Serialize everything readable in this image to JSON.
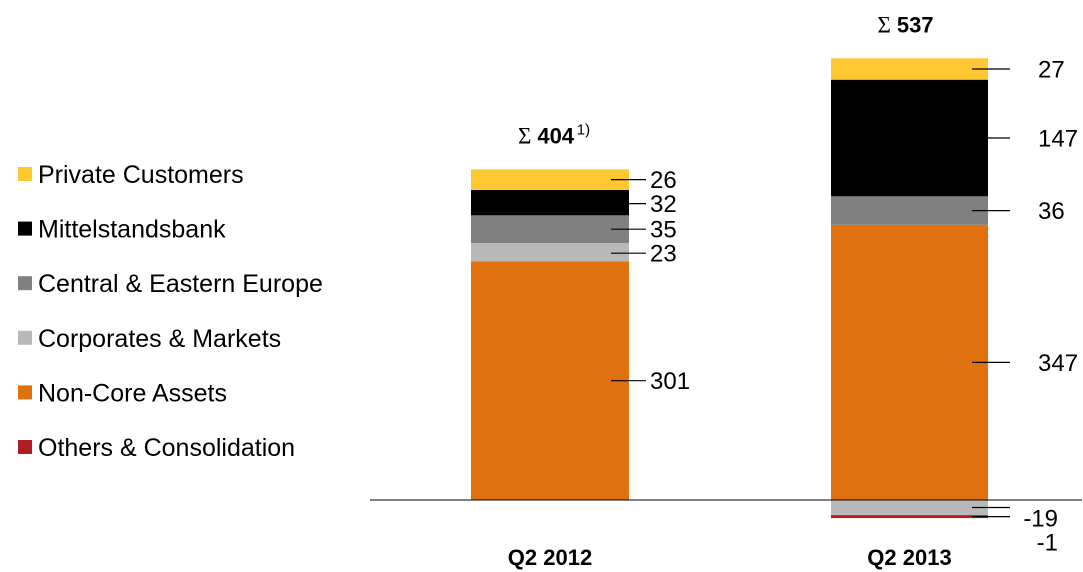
{
  "chart_data": {
    "type": "bar",
    "stacked": true,
    "categories": [
      "Q2 2012",
      "Q2 2013"
    ],
    "series": [
      {
        "name": "Private Customers",
        "color": "#FFC832",
        "values": [
          26,
          27
        ]
      },
      {
        "name": "Mittelstandsbank",
        "color": "#000000",
        "values": [
          32,
          147
        ]
      },
      {
        "name": "Central & Eastern Europe",
        "color": "#808080",
        "values": [
          35,
          36
        ]
      },
      {
        "name": "Corporates & Markets",
        "color": "#B8B8B8",
        "values": [
          23,
          -19
        ]
      },
      {
        "name": "Non-Core Assets",
        "color": "#E1700E",
        "values": [
          301,
          347
        ]
      },
      {
        "name": "Others & Consolidation",
        "color": "#B01E23",
        "values": [
          null,
          -1
        ]
      }
    ],
    "totals": [
      {
        "symbol": "Σ",
        "value": 404,
        "footnote": "1)"
      },
      {
        "symbol": "Σ",
        "value": 537,
        "footnote": ""
      }
    ],
    "legend": "left",
    "grid": false,
    "data_labels": true
  }
}
